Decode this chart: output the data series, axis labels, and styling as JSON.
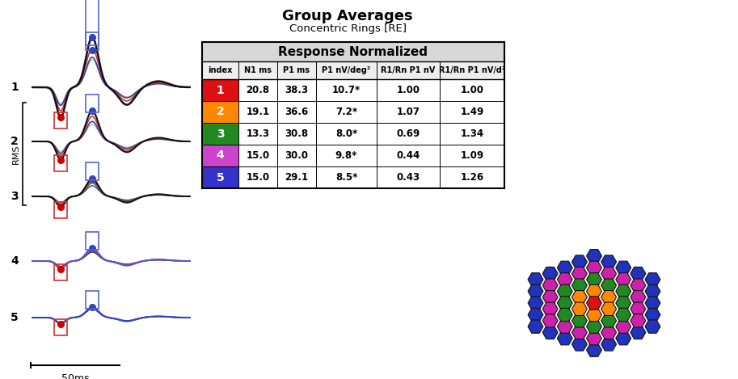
{
  "title": "Group Averages",
  "subtitle": "Concentric Rings [RE]",
  "table_header": "Response Normalized",
  "table_cols": [
    "index",
    "N1 ms",
    "P1 ms",
    "P1 nV/deg²",
    "R1/Rn P1 nV",
    "R1/Rn P1 nV/d²"
  ],
  "table_rows": [
    {
      "index": "1",
      "color": "#dd1111",
      "N1": "20.8",
      "P1ms": "38.3",
      "P1nv": "10.7*",
      "R1Rn": "1.00",
      "R1Rnd": "1.00"
    },
    {
      "index": "2",
      "color": "#ff8800",
      "N1": "19.1",
      "P1ms": "36.6",
      "P1nv": "7.2*",
      "R1Rn": "1.07",
      "R1Rnd": "1.49"
    },
    {
      "index": "3",
      "color": "#228822",
      "N1": "13.3",
      "P1ms": "30.8",
      "P1nv": "8.0*",
      "R1Rn": "0.69",
      "R1Rnd": "1.34"
    },
    {
      "index": "4",
      "color": "#cc44cc",
      "N1": "15.0",
      "P1ms": "30.0",
      "P1nv": "9.8*",
      "R1Rn": "0.44",
      "R1Rnd": "1.09"
    },
    {
      "index": "5",
      "color": "#3333cc",
      "N1": "15.0",
      "P1ms": "29.1",
      "P1nv": "8.5*",
      "R1Rn": "0.43",
      "R1Rnd": "1.26"
    }
  ],
  "scalebar_label": "50ms",
  "ylabel": "RMS"
}
